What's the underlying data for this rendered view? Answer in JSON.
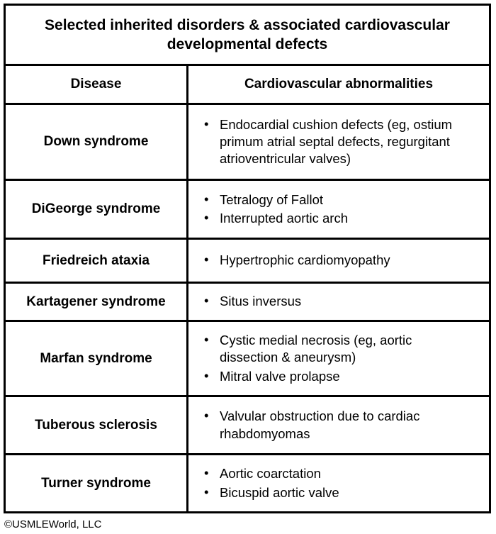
{
  "title": "Selected inherited disorders & associated cardiovascular developmental defects",
  "columns": {
    "disease": "Disease",
    "abnormalities": "Cardiovascular abnormalities"
  },
  "rows": [
    {
      "disease": "Down syndrome",
      "abnormalities": [
        "Endocardial cushion defects (eg, ostium primum atrial septal defects, regurgitant atrioventricular valves)"
      ]
    },
    {
      "disease": "DiGeorge syndrome",
      "abnormalities": [
        "Tetralogy of Fallot",
        "Interrupted aortic arch"
      ]
    },
    {
      "disease": "Friedreich ataxia",
      "abnormalities": [
        "Hypertrophic cardiomyopathy"
      ]
    },
    {
      "disease": "Kartagener syndrome",
      "abnormalities": [
        "Situs inversus"
      ]
    },
    {
      "disease": "Marfan syndrome",
      "abnormalities": [
        "Cystic medial necrosis (eg, aortic dissection & aneurysm)",
        "Mitral valve prolapse"
      ]
    },
    {
      "disease": "Tuberous sclerosis",
      "abnormalities": [
        "Valvular obstruction due to cardiac rhabdomyomas"
      ]
    },
    {
      "disease": "Turner syndrome",
      "abnormalities": [
        "Aortic coarctation",
        "Bicuspid aortic valve"
      ]
    }
  ],
  "footer": {
    "copyright": "©USMLEWorld, LLC"
  },
  "colors": {
    "border": "#000000",
    "text": "#000000",
    "background": "#ffffff"
  }
}
